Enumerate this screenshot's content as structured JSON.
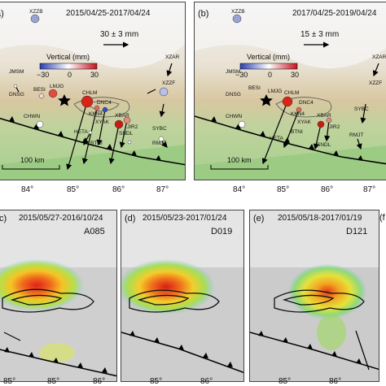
{
  "gps_panels": [
    {
      "label": "a)",
      "period": "2015/04/25-2017/04/24",
      "scale": "30 ± 3 mm",
      "colorbar_title": "Vertical (mm)",
      "colorbar_ticks": [
        "−30",
        "0",
        "30"
      ],
      "distance_scale": "100 km",
      "x_ticks": [
        "84°",
        "85°",
        "86°",
        "87°"
      ]
    },
    {
      "label": "(b)",
      "period": "2017/04/25-2019/04/24",
      "scale": "15 ± 3 mm",
      "colorbar_title": "Vertical (mm)",
      "colorbar_ticks": [
        "−30",
        "0",
        "30"
      ],
      "distance_scale": "100 km",
      "x_ticks": [
        "84°",
        "85°",
        "86°",
        "87°"
      ]
    }
  ],
  "stations": [
    "XZZB",
    "XZAR",
    "JMSM",
    "DNSG",
    "BESI",
    "LMJG",
    "CHLM",
    "DNC4",
    "KKN4",
    "XYAK",
    "XBAR",
    "JIR2",
    "XZZF",
    "SYBC",
    "CHWN",
    "HETA",
    "BTNI",
    "SNDL",
    "RMJT"
  ],
  "insar_panels": [
    {
      "label": "c)",
      "period": "2015/05/27-2016/10/24",
      "track": "A085",
      "x_ticks": [
        "85°",
        "85°",
        "86°"
      ]
    },
    {
      "label": "(d)",
      "period": "2015/05/23-2017/01/24",
      "track": "D019",
      "x_ticks": [
        "85°",
        "86°"
      ]
    },
    {
      "label": "(e)",
      "period": "2015/05/18-2017/01/19",
      "track": "D121",
      "x_ticks": [
        "85°",
        "86°"
      ]
    }
  ],
  "edge_label": "(f"
}
